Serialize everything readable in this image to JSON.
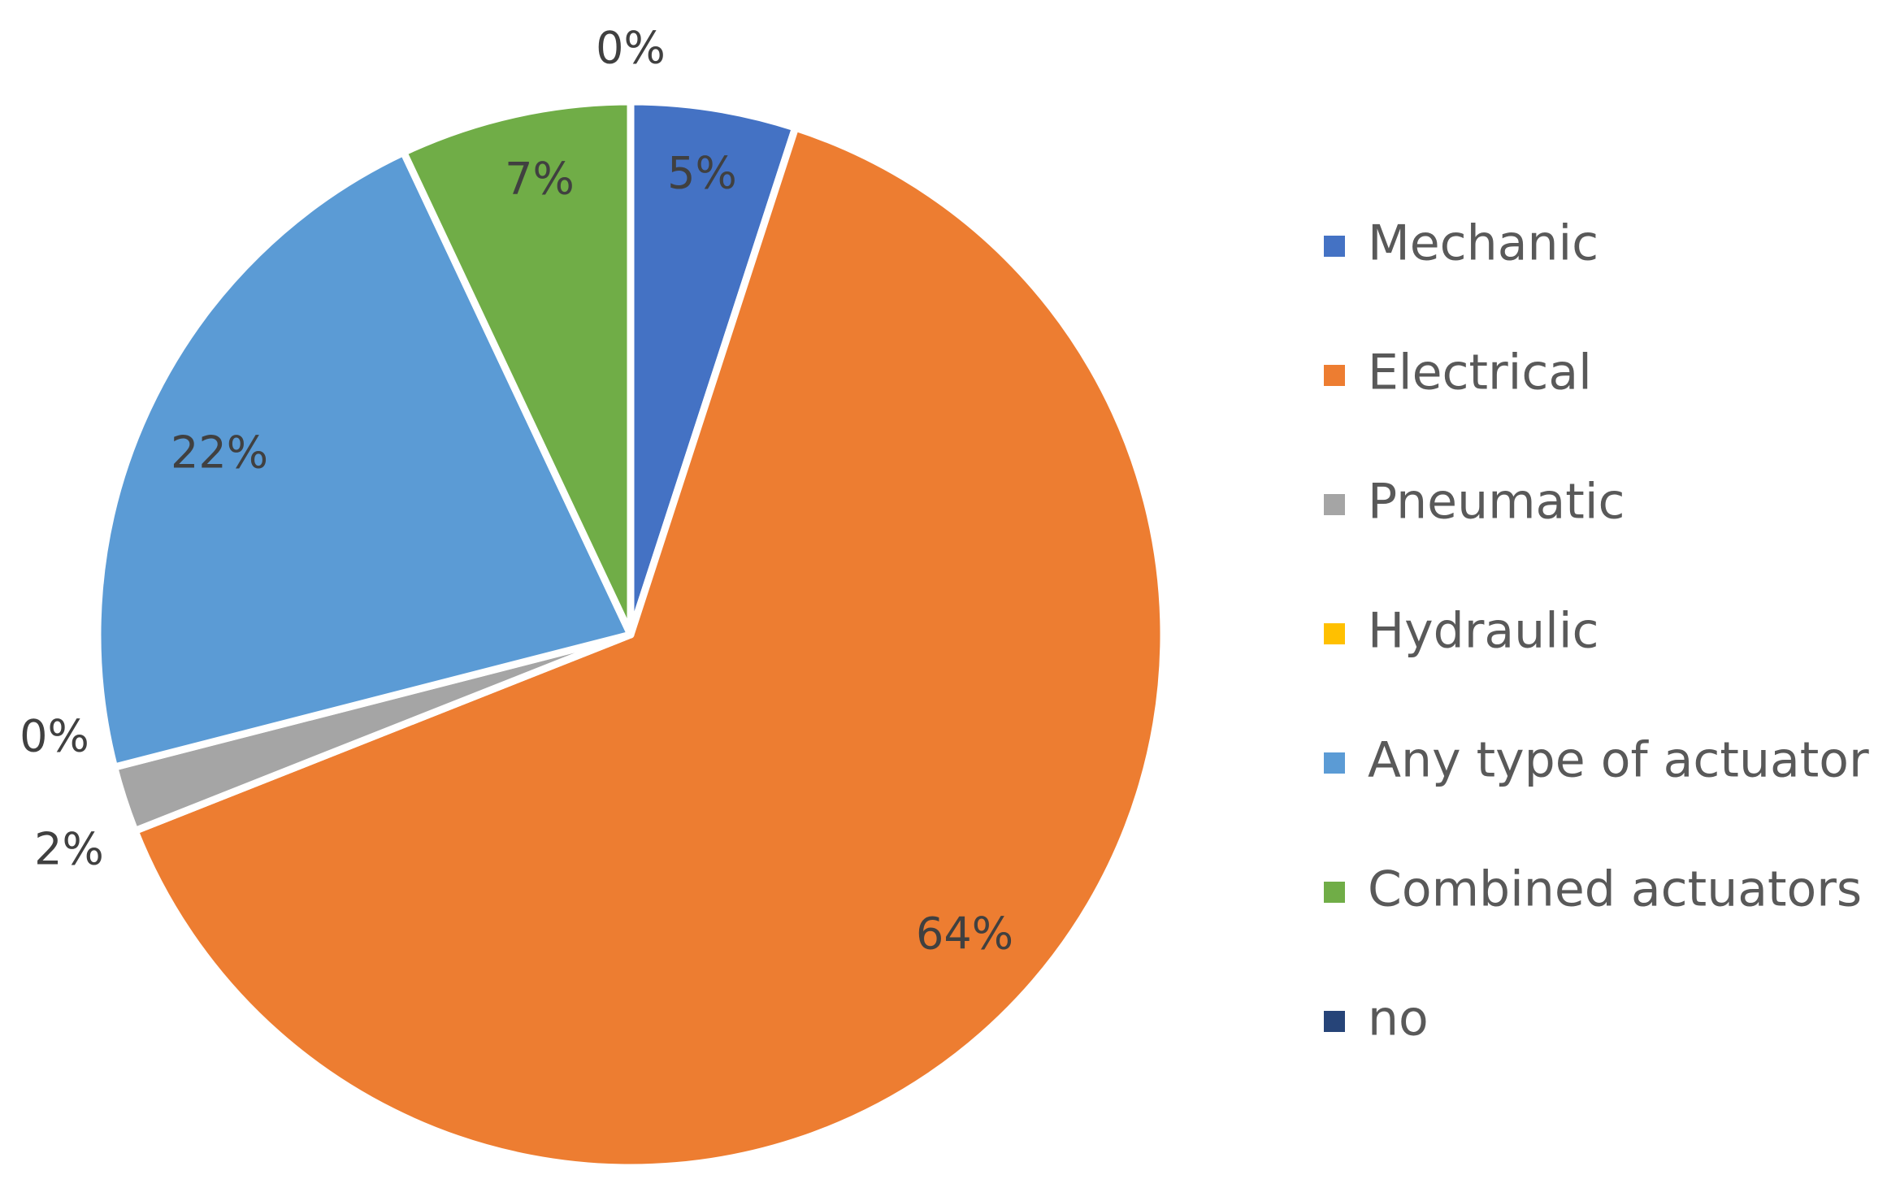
{
  "chart_data": {
    "type": "pie",
    "title": "",
    "series": [
      {
        "values": [
          5,
          64,
          2,
          0,
          22,
          7,
          0
        ]
      }
    ],
    "categories": [
      "Mechanic",
      "Electrical",
      "Pneumatic",
      "Hydraulic",
      "Any type of actuator",
      "Combined actuators",
      "no"
    ],
    "values": [
      5,
      64,
      2,
      0,
      22,
      7,
      0
    ],
    "colors": [
      "#4472C4",
      "#ED7D31",
      "#A5A5A5",
      "#FFC000",
      "#5B9BD5",
      "#70AD47",
      "#264478"
    ],
    "data_labels": [
      "5%",
      "64%",
      "2%",
      "0%",
      "22%",
      "7%",
      "0%"
    ],
    "start_angle": "12 o'clock",
    "direction": "clockwise",
    "legend": "right"
  }
}
